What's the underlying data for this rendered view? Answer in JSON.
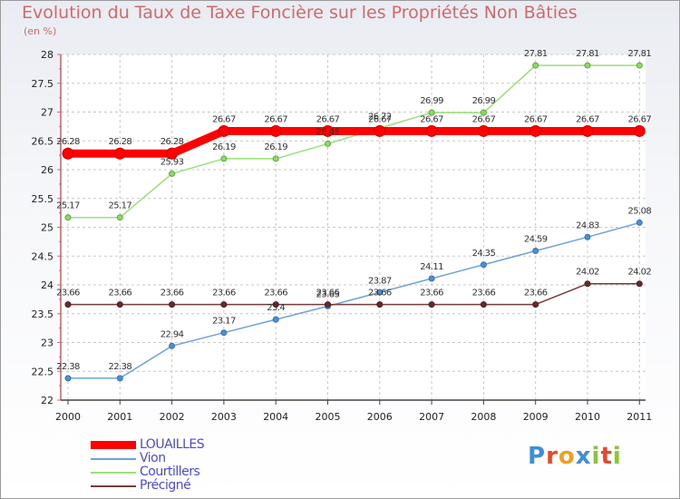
{
  "chart_data": {
    "type": "line",
    "title": "Evolution du Taux de Taxe Foncière sur les Propriétés Non Bâties",
    "unit_label": "(en %)",
    "xlabel": "",
    "ylabel": "(en %)",
    "ylim": [
      22,
      28
    ],
    "y_ticks": [
      "22",
      "22.5",
      "23",
      "23.5",
      "24",
      "24.5",
      "25",
      "25.5",
      "26",
      "26.5",
      "27",
      "27.5",
      "28"
    ],
    "categories": [
      "2000",
      "2001",
      "2002",
      "2003",
      "2004",
      "2005",
      "2006",
      "2007",
      "2008",
      "2009",
      "2010",
      "2011"
    ],
    "grid": true,
    "legend_position": "bottom-left",
    "series": [
      {
        "name": "LOUAILLES",
        "color": "#ff0000",
        "values": [
          26.28,
          26.28,
          26.28,
          26.67,
          26.67,
          26.67,
          26.67,
          26.67,
          26.67,
          26.67,
          26.67,
          26.67
        ],
        "labels": [
          "26.28",
          "26.28",
          "26.28",
          "26.67",
          "26.67",
          "26.67",
          "26.67",
          "26.67",
          "26.67",
          "26.67",
          "26.67",
          "26.67"
        ]
      },
      {
        "name": "Vion",
        "color": "#6fa3d8",
        "values": [
          22.38,
          22.38,
          22.94,
          23.17,
          23.4,
          23.63,
          23.87,
          24.11,
          24.35,
          24.59,
          24.83,
          25.08
        ],
        "labels": [
          "22.38",
          "22.38",
          "22.94",
          "23.17",
          "23.4",
          "23.63",
          "23.87",
          "24.11",
          "24.35",
          "24.59",
          "24.83",
          "25.08"
        ]
      },
      {
        "name": "Courtillers",
        "color": "#99e07a",
        "values": [
          25.17,
          25.17,
          25.93,
          26.19,
          26.19,
          26.45,
          26.72,
          26.99,
          26.99,
          27.81,
          27.81,
          27.81
        ],
        "labels": [
          "25.17",
          "25.17",
          "25.93",
          "26.19",
          "26.19",
          "26.45",
          "26.72",
          "26.99",
          "26.99",
          "27.81",
          "27.81",
          "27.81"
        ]
      },
      {
        "name": "Précigné",
        "color": "#7a3b3b",
        "values": [
          23.66,
          23.66,
          23.66,
          23.66,
          23.66,
          23.66,
          23.66,
          23.66,
          23.66,
          23.66,
          24.02,
          24.02
        ],
        "labels": [
          "23.66",
          "23.66",
          "23.66",
          "23.66",
          "23.66",
          "23.66",
          "23.66",
          "23.66",
          "23.66",
          "23.66",
          "24.02",
          "24.02"
        ]
      }
    ]
  },
  "logo": {
    "letters": [
      "P",
      "r",
      "o",
      "x",
      "i",
      "t",
      "i"
    ]
  }
}
